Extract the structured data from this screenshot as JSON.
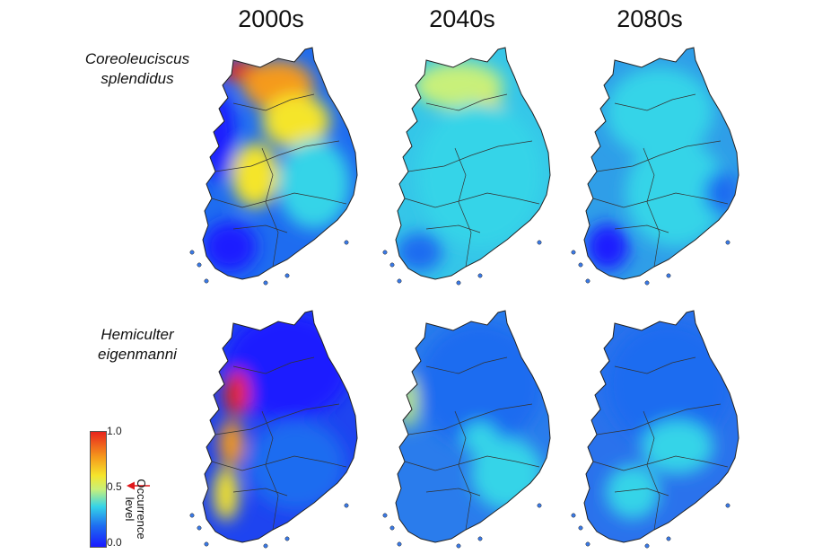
{
  "columns": [
    "2000s",
    "2040s",
    "2080s"
  ],
  "rows": [
    {
      "species_line1": "Coreoleuciscus",
      "species_line2": "splendidus"
    },
    {
      "species_line1": "Hemiculter",
      "species_line2": "eigenmanni"
    }
  ],
  "legend": {
    "max_label": "1.0",
    "mid_label": "0.5",
    "min_label": "0.0",
    "title_line1": "Occurrence",
    "title_line2": "level",
    "threshold_value": 0.5,
    "arrow_color": "#e0191c",
    "colors": [
      "#1a1aff",
      "#1e6cf0",
      "#35d4e8",
      "#c8f07a",
      "#f5e52c",
      "#f59a1c",
      "#e8251e"
    ]
  },
  "maps": [
    {
      "species": "Coreoleuciscus splendidus",
      "period": "2000s",
      "pattern": "high-north-east, low-west-south"
    },
    {
      "species": "Coreoleuciscus splendidus",
      "period": "2040s",
      "pattern": "moderate central"
    },
    {
      "species": "Coreoleuciscus splendidus",
      "period": "2080s",
      "pattern": "low uniform"
    },
    {
      "species": "Hemiculter eigenmanni",
      "period": "2000s",
      "pattern": "high west coast"
    },
    {
      "species": "Hemiculter eigenmanni",
      "period": "2040s",
      "pattern": "low with west patches"
    },
    {
      "species": "Hemiculter eigenmanni",
      "period": "2080s",
      "pattern": "low uniform"
    }
  ]
}
